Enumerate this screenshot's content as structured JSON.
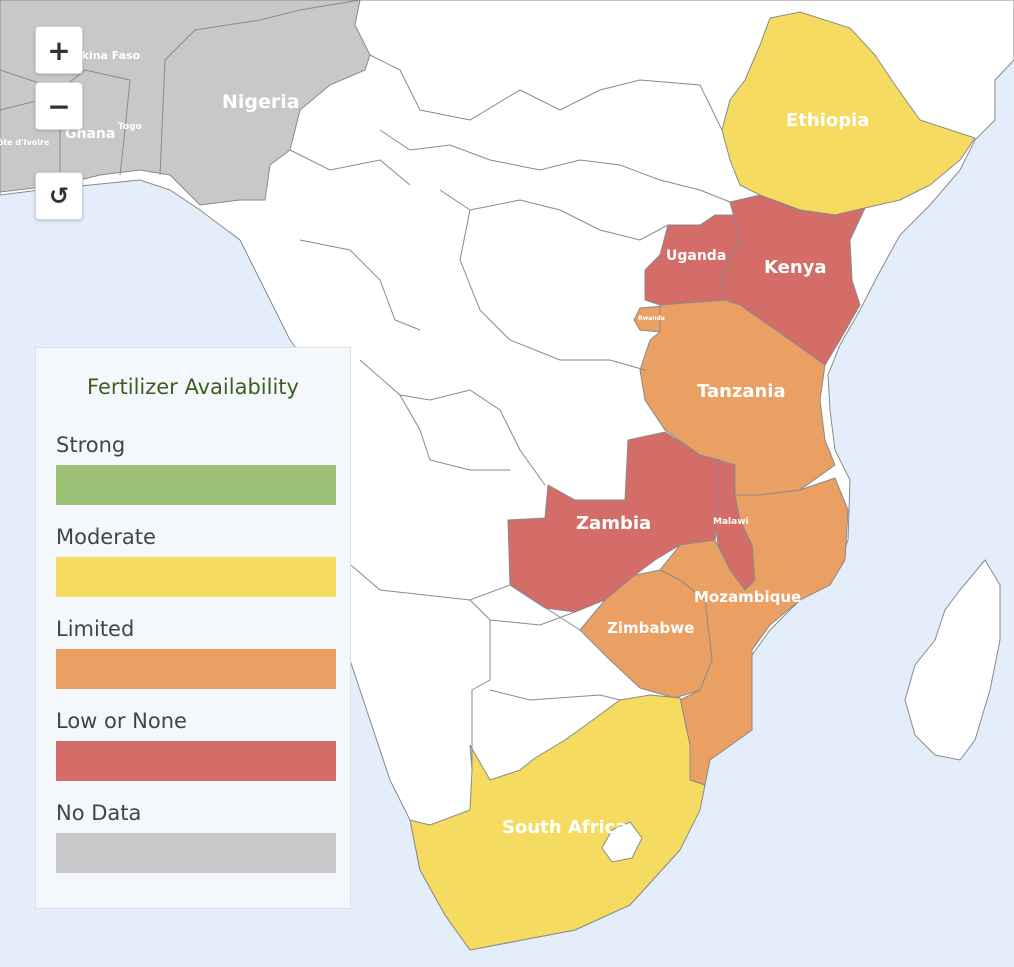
{
  "map": {
    "colors": {
      "strong": "#9dc275",
      "moderate": "#f5dc60",
      "limited": "#e9a062",
      "low": "#d46c67",
      "nodata": "#c8c8c8",
      "land": "#ffffff",
      "ocean": "#e3eefa",
      "border": "#8a8a8a"
    },
    "country_labels": {
      "nigeria": "Nigeria",
      "ghana": "Ghana",
      "togo": "Togo",
      "burkina": "Burkina Faso",
      "ivoire": "Côte d'Ivoire",
      "ethiopia": "Ethiopia",
      "uganda": "Uganda",
      "kenya": "Kenya",
      "rwanda": "Rwanda",
      "tanzania": "Tanzania",
      "zambia": "Zambia",
      "malawi": "Malawi",
      "mozambique": "Mozambique",
      "zimbabwe": "Zimbabwe",
      "south_africa": "South Africa"
    }
  },
  "controls": {
    "zoom_in": "+",
    "zoom_out": "−",
    "reset": "↺"
  },
  "legend": {
    "title": "Fertilizer Availability",
    "items": [
      {
        "label": "Strong",
        "color": "#9dc275"
      },
      {
        "label": "Moderate",
        "color": "#f5dc60"
      },
      {
        "label": "Limited",
        "color": "#e9a062"
      },
      {
        "label": "Low or None",
        "color": "#d46c67"
      },
      {
        "label": "No Data",
        "color": "#c8c8c8"
      }
    ]
  }
}
